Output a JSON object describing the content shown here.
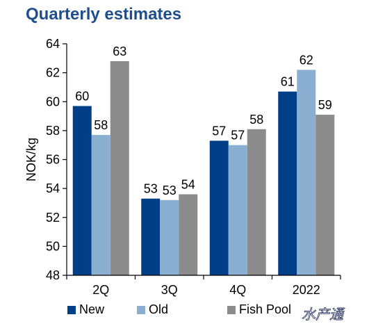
{
  "chart_data": {
    "type": "bar",
    "title": "Quarterly estimates",
    "ylabel": "NOK/kg",
    "xlabel": "",
    "categories": [
      "2Q",
      "3Q",
      "4Q",
      "2022"
    ],
    "ylim": [
      48,
      64
    ],
    "yticks": [
      48,
      50,
      52,
      54,
      56,
      58,
      60,
      62,
      64
    ],
    "grid": false,
    "legend_position": "bottom",
    "series": [
      {
        "name": "New",
        "color": "#003F87",
        "values": [
          59.7,
          53.3,
          57.3,
          60.7
        ],
        "labels": [
          "60",
          "53",
          "57",
          "61"
        ]
      },
      {
        "name": "Old",
        "color": "#8BAFD1",
        "values": [
          57.7,
          53.2,
          57.0,
          62.2
        ],
        "labels": [
          "58",
          "53",
          "57",
          "62"
        ]
      },
      {
        "name": "Fish Pool",
        "color": "#8C8C8C",
        "values": [
          62.8,
          53.6,
          58.1,
          59.1
        ],
        "labels": [
          "63",
          "54",
          "58",
          "59"
        ]
      }
    ]
  },
  "colors": {
    "title": "#1F4E8C",
    "axis": "#000000"
  },
  "watermark": "水产通"
}
